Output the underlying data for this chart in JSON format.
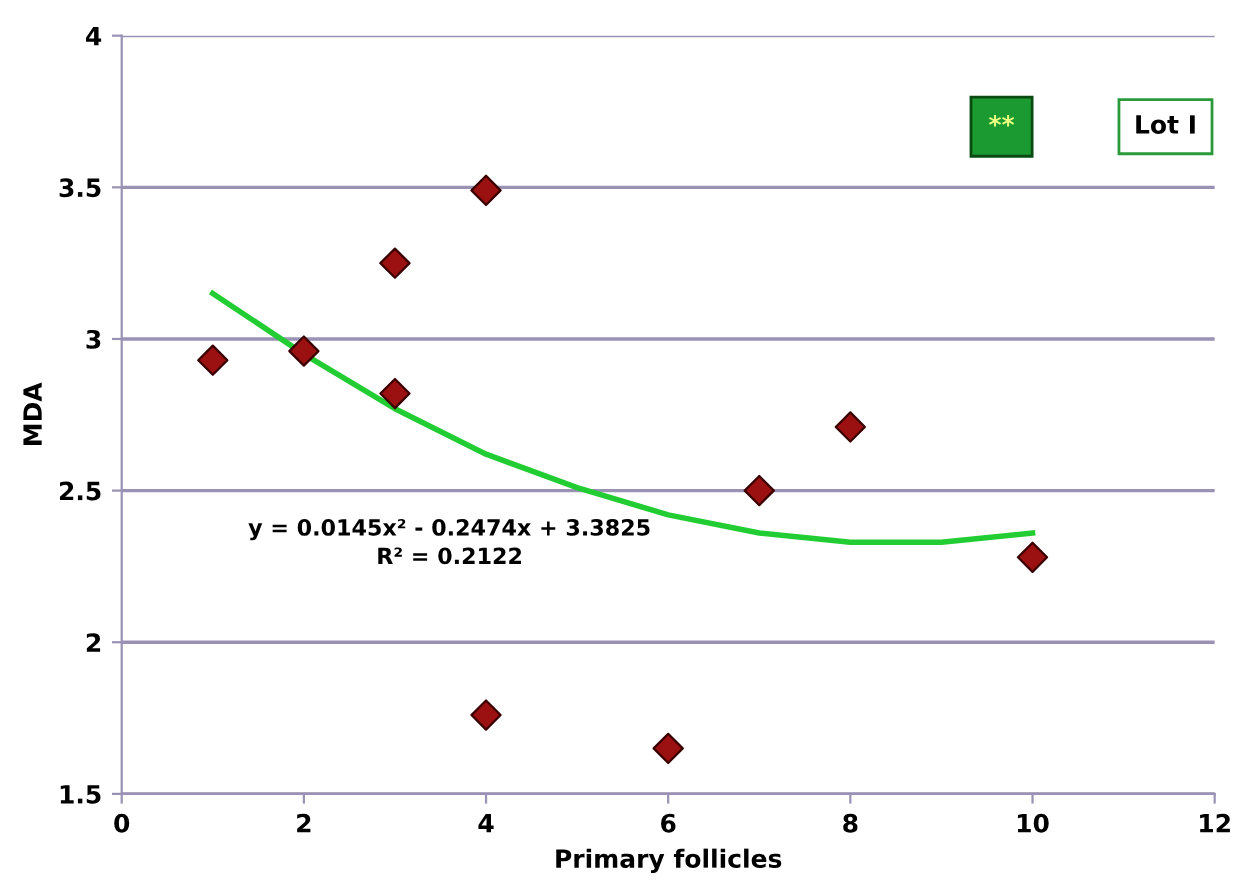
{
  "chart_data": {
    "type": "scatter",
    "xlabel": "Primary follicles",
    "ylabel": "MDA",
    "xlim": [
      0,
      12
    ],
    "xticks": [
      0,
      2,
      4,
      6,
      8,
      10,
      12
    ],
    "ylim": [
      1.5,
      4
    ],
    "yticks": [
      1.5,
      2,
      2.5,
      3,
      3.5,
      4
    ],
    "grid": "y",
    "marker": "diamond",
    "legend": false,
    "series": [
      {
        "color": "#9b1010",
        "x": [
          1,
          2,
          3,
          3,
          4,
          4,
          6,
          7,
          8,
          10
        ],
        "values": [
          2.93,
          2.96,
          3.25,
          2.82,
          3.49,
          1.76,
          1.65,
          2.5,
          2.71,
          2.28
        ]
      },
      {
        "type": "line",
        "color": "#22cc33",
        "marker": "none",
        "line_style": "solid",
        "x": [
          1,
          2,
          3,
          4,
          5,
          6,
          7,
          8,
          9,
          10
        ],
        "values": [
          3.15,
          2.95,
          2.77,
          2.62,
          2.51,
          2.42,
          2.36,
          2.33,
          2.33,
          2.36
        ]
      }
    ],
    "annotations": [
      "y = 0.0145x² - 0.2474x + 3.3825\nR² = 0.2122",
      "**",
      "Lot I"
    ]
  }
}
